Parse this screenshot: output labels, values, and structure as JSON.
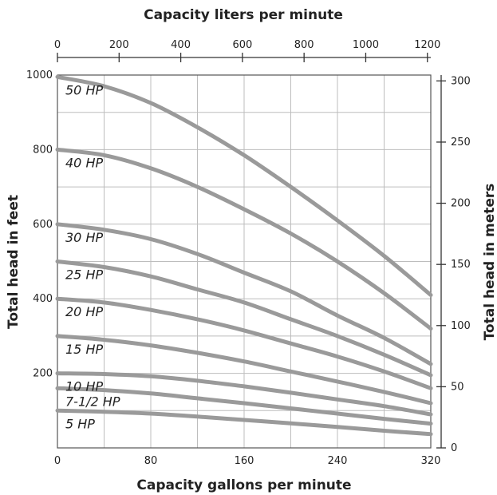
{
  "chart_data": {
    "type": "line",
    "title_top": "Capacity liters per minute",
    "xlabel": "Capacity gallons per minute",
    "ylabel_left": "Total head in feet",
    "ylabel_right": "Total head in meters",
    "x_range": [
      0,
      320
    ],
    "x_ticks": [
      0,
      80,
      160,
      240,
      320
    ],
    "x_grid": [
      0,
      40,
      80,
      120,
      160,
      200,
      240,
      280,
      320
    ],
    "y_range": [
      0,
      1000
    ],
    "y_ticks": [
      200,
      400,
      600,
      800,
      1000
    ],
    "y_grid": [
      100,
      200,
      300,
      400,
      500,
      600,
      700,
      800,
      900,
      1000
    ],
    "top_range": [
      0,
      1211
    ],
    "top_ticks": [
      0,
      200,
      400,
      600,
      800,
      1000,
      1200
    ],
    "right_range": [
      0,
      304.8
    ],
    "right_ticks": [
      0,
      50,
      100,
      150,
      200,
      250,
      300
    ],
    "grid": true,
    "series": [
      {
        "name": "50 HP",
        "x": [
          0,
          40,
          80,
          120,
          160,
          200,
          240,
          280,
          320
        ],
        "values": [
          995,
          970,
          925,
          860,
          785,
          700,
          610,
          515,
          410
        ]
      },
      {
        "name": "40 HP",
        "x": [
          0,
          40,
          80,
          120,
          160,
          200,
          240,
          280,
          320
        ],
        "values": [
          800,
          785,
          750,
          700,
          640,
          575,
          500,
          415,
          320
        ]
      },
      {
        "name": "30 HP",
        "x": [
          0,
          40,
          80,
          120,
          160,
          200,
          240,
          280,
          320
        ],
        "values": [
          600,
          585,
          560,
          520,
          470,
          420,
          355,
          295,
          225
        ]
      },
      {
        "name": "25 HP",
        "x": [
          0,
          40,
          80,
          120,
          160,
          200,
          240,
          280,
          320
        ],
        "values": [
          500,
          485,
          460,
          425,
          390,
          345,
          300,
          250,
          195
        ]
      },
      {
        "name": "20 HP",
        "x": [
          0,
          40,
          80,
          120,
          160,
          200,
          240,
          280,
          320
        ],
        "values": [
          400,
          390,
          370,
          345,
          315,
          280,
          245,
          205,
          160
        ]
      },
      {
        "name": "15 HP",
        "x": [
          0,
          40,
          80,
          120,
          160,
          200,
          240,
          280,
          320
        ],
        "values": [
          300,
          290,
          275,
          255,
          232,
          205,
          178,
          150,
          120
        ]
      },
      {
        "name": "10 HP",
        "x": [
          0,
          40,
          80,
          120,
          160,
          200,
          240,
          280,
          320
        ],
        "values": [
          200,
          198,
          192,
          180,
          165,
          148,
          130,
          112,
          90
        ]
      },
      {
        "name": "7-1/2 HP",
        "x": [
          0,
          40,
          80,
          120,
          160,
          200,
          240,
          280,
          320
        ],
        "values": [
          160,
          155,
          146,
          133,
          120,
          106,
          92,
          78,
          65
        ]
      },
      {
        "name": "5 HP",
        "x": [
          0,
          40,
          80,
          120,
          160,
          200,
          240,
          280,
          320
        ],
        "values": [
          100,
          97,
          92,
          84,
          75,
          66,
          56,
          46,
          37
        ]
      }
    ]
  }
}
